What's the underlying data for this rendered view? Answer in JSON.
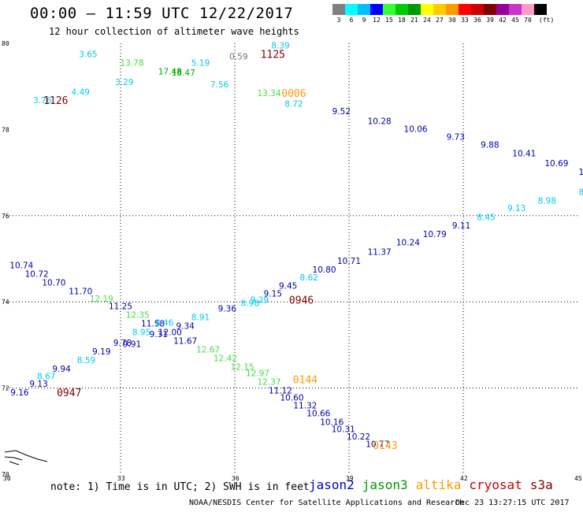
{
  "header": {
    "title": "00:00 — 11:59 UTC 12/22/2017",
    "subtitle": "12 hour collection of altimeter wave heights"
  },
  "legend": {
    "unit": "(ft)",
    "bins": [
      {
        "label": "3",
        "color": "#808080"
      },
      {
        "label": "6",
        "color": "#00ffff"
      },
      {
        "label": "9",
        "color": "#00bfff"
      },
      {
        "label": "12",
        "color": "#0000ff"
      },
      {
        "label": "15",
        "color": "#33ff33"
      },
      {
        "label": "18",
        "color": "#00cc00"
      },
      {
        "label": "21",
        "color": "#009900"
      },
      {
        "label": "24",
        "color": "#ffff00"
      },
      {
        "label": "27",
        "color": "#ffcc00"
      },
      {
        "label": "30",
        "color": "#ff9900"
      },
      {
        "label": "33",
        "color": "#ff0000"
      },
      {
        "label": "36",
        "color": "#cc0000"
      },
      {
        "label": "39",
        "color": "#800000"
      },
      {
        "label": "42",
        "color": "#990099"
      },
      {
        "label": "45",
        "color": "#cc33cc"
      },
      {
        "label": "70",
        "color": "#ff99cc"
      },
      {
        "label": "",
        "color": "#000000"
      }
    ]
  },
  "footer": {
    "note": "note: 1) Time is in UTC; 2) SWH is in feet",
    "credit": "NOAA/NESDIS Center for Satellite Applications and Research",
    "timestamp": "Dec 23 13:27:15 UTC 2017",
    "satellites": [
      {
        "name": "jason2",
        "color": "#0000cc"
      },
      {
        "name": "jason3",
        "color": "#009900"
      },
      {
        "name": "altika",
        "color": "#ff9900"
      },
      {
        "name": "cryosat",
        "color": "#cc0000"
      },
      {
        "name": "s3a",
        "color": "#800000"
      }
    ]
  },
  "colors": {
    "c": "#00ccee",
    "b": "#0000aa",
    "g": "#44dd44",
    "d": "#00aa00",
    "o": "#ff9900",
    "r": "#800000",
    "k": "#707070"
  },
  "chart_data": {
    "type": "scatter",
    "xlabel": "",
    "ylabel": "",
    "xlim": [
      30,
      45
    ],
    "ylim": [
      70,
      80
    ],
    "x_ticks": [
      "30",
      "33",
      "36",
      "39",
      "42",
      "45"
    ],
    "y_ticks": [
      "70",
      "72",
      "74",
      "76",
      "78",
      "80"
    ],
    "x_tick_values": [
      30,
      33,
      36,
      39,
      42,
      45
    ],
    "y_tick_values": [
      70,
      72,
      74,
      76,
      78,
      80
    ],
    "grid_x": [
      33,
      36,
      39,
      42
    ],
    "grid_y": [
      72,
      74,
      76
    ],
    "points": [
      {
        "x": 32.15,
        "y": 79.75,
        "t": "3.65",
        "c": "c"
      },
      {
        "x": 33.3,
        "y": 79.55,
        "t": "13.78",
        "c": "g"
      },
      {
        "x": 35.1,
        "y": 79.55,
        "t": "5.19",
        "c": "c"
      },
      {
        "x": 36.1,
        "y": 79.7,
        "t": "0.59",
        "c": "k"
      },
      {
        "x": 37.2,
        "y": 79.95,
        "t": "8.39",
        "c": "c"
      },
      {
        "x": 34.3,
        "y": 79.35,
        "t": "17.48",
        "c": "d"
      },
      {
        "x": 34.65,
        "y": 79.32,
        "t": "18.47",
        "c": "d"
      },
      {
        "x": 33.1,
        "y": 79.1,
        "t": "3.29",
        "c": "c"
      },
      {
        "x": 35.6,
        "y": 79.05,
        "t": "7.56",
        "c": "c"
      },
      {
        "x": 31.95,
        "y": 78.88,
        "t": "4.49",
        "c": "c"
      },
      {
        "x": 36.9,
        "y": 78.85,
        "t": "13.34",
        "c": "g"
      },
      {
        "x": 30.95,
        "y": 78.68,
        "t": "3.76",
        "c": "c"
      },
      {
        "x": 37.55,
        "y": 78.6,
        "t": "8.72",
        "c": "c"
      },
      {
        "x": 38.8,
        "y": 78.43,
        "t": "9.52",
        "c": "b"
      },
      {
        "x": 39.8,
        "y": 78.2,
        "t": "10.28",
        "c": "b"
      },
      {
        "x": 40.75,
        "y": 78.02,
        "t": "10.06",
        "c": "b"
      },
      {
        "x": 41.8,
        "y": 77.83,
        "t": "9.73",
        "c": "b"
      },
      {
        "x": 42.7,
        "y": 77.65,
        "t": "9.88",
        "c": "b"
      },
      {
        "x": 43.6,
        "y": 77.45,
        "t": "10.41",
        "c": "b"
      },
      {
        "x": 44.45,
        "y": 77.22,
        "t": "10.69",
        "c": "b"
      },
      {
        "x": 45.1,
        "y": 77.02,
        "t": "1",
        "c": "b"
      },
      {
        "x": 45.1,
        "y": 76.55,
        "t": "8",
        "c": "c"
      },
      {
        "x": 44.2,
        "y": 76.35,
        "t": "8.98",
        "c": "c"
      },
      {
        "x": 43.4,
        "y": 76.18,
        "t": "9.13",
        "c": "c"
      },
      {
        "x": 42.6,
        "y": 75.97,
        "t": "8.45",
        "c": "c"
      },
      {
        "x": 41.95,
        "y": 75.78,
        "t": "9.11",
        "c": "b"
      },
      {
        "x": 41.25,
        "y": 75.58,
        "t": "10.79",
        "c": "b"
      },
      {
        "x": 40.55,
        "y": 75.38,
        "t": "10.24",
        "c": "b"
      },
      {
        "x": 39.8,
        "y": 75.16,
        "t": "11.37",
        "c": "b"
      },
      {
        "x": 39.0,
        "y": 74.95,
        "t": "10.71",
        "c": "b"
      },
      {
        "x": 38.35,
        "y": 74.75,
        "t": "10.80",
        "c": "b"
      },
      {
        "x": 37.95,
        "y": 74.57,
        "t": "8.62",
        "c": "c"
      },
      {
        "x": 37.4,
        "y": 74.38,
        "t": "9.45",
        "c": "b"
      },
      {
        "x": 37.0,
        "y": 74.2,
        "t": "9.15",
        "c": "b"
      },
      {
        "x": 36.65,
        "y": 74.05,
        "t": "9.29",
        "c": "c"
      },
      {
        "x": 36.4,
        "y": 73.98,
        "t": "8.98",
        "c": "c"
      },
      {
        "x": 35.8,
        "y": 73.85,
        "t": "9.36",
        "c": "b"
      },
      {
        "x": 35.1,
        "y": 73.65,
        "t": "8.91",
        "c": "c"
      },
      {
        "x": 34.7,
        "y": 73.45,
        "t": "9.34",
        "c": "b"
      },
      {
        "x": 34.0,
        "y": 73.25,
        "t": "9.31",
        "c": "b"
      },
      {
        "x": 33.3,
        "y": 73.03,
        "t": "9.91",
        "c": "b"
      },
      {
        "x": 30.4,
        "y": 74.85,
        "t": "10.74",
        "c": "b"
      },
      {
        "x": 30.8,
        "y": 74.65,
        "t": "10.72",
        "c": "b"
      },
      {
        "x": 31.25,
        "y": 74.45,
        "t": "10.70",
        "c": "b"
      },
      {
        "x": 31.95,
        "y": 74.25,
        "t": "11.70",
        "c": "b"
      },
      {
        "x": 32.5,
        "y": 74.08,
        "t": "12.19",
        "c": "g"
      },
      {
        "x": 33.0,
        "y": 73.9,
        "t": "11.25",
        "c": "b"
      },
      {
        "x": 33.45,
        "y": 73.7,
        "t": "12.35",
        "c": "g"
      },
      {
        "x": 33.85,
        "y": 73.5,
        "t": "11.58",
        "c": "b"
      },
      {
        "x": 34.15,
        "y": 73.52,
        "t": "8.46",
        "c": "c"
      },
      {
        "x": 34.3,
        "y": 73.3,
        "t": "12.00",
        "c": "b"
      },
      {
        "x": 34.7,
        "y": 73.1,
        "t": "11.67",
        "c": "b"
      },
      {
        "x": 35.3,
        "y": 72.9,
        "t": "12.67",
        "c": "g"
      },
      {
        "x": 35.75,
        "y": 72.7,
        "t": "12.42",
        "c": "g"
      },
      {
        "x": 36.2,
        "y": 72.5,
        "t": "12.15",
        "c": "g"
      },
      {
        "x": 36.6,
        "y": 72.35,
        "t": "12.97",
        "c": "g"
      },
      {
        "x": 36.9,
        "y": 72.15,
        "t": "12.37",
        "c": "g"
      },
      {
        "x": 37.2,
        "y": 71.95,
        "t": "11.12",
        "c": "b"
      },
      {
        "x": 37.5,
        "y": 71.78,
        "t": "10.60",
        "c": "b"
      },
      {
        "x": 37.85,
        "y": 71.6,
        "t": "11.32",
        "c": "b"
      },
      {
        "x": 38.2,
        "y": 71.42,
        "t": "10.66",
        "c": "b"
      },
      {
        "x": 38.55,
        "y": 71.22,
        "t": "10.16",
        "c": "b"
      },
      {
        "x": 38.85,
        "y": 71.05,
        "t": "10.31",
        "c": "b"
      },
      {
        "x": 39.25,
        "y": 70.88,
        "t": "10.22",
        "c": "b"
      },
      {
        "x": 39.75,
        "y": 70.7,
        "t": "10.77",
        "c": "b"
      },
      {
        "x": 33.55,
        "y": 73.3,
        "t": "8.95",
        "c": "c"
      },
      {
        "x": 33.05,
        "y": 73.05,
        "t": "9.78",
        "c": "b"
      },
      {
        "x": 32.5,
        "y": 72.85,
        "t": "9.19",
        "c": "b"
      },
      {
        "x": 32.1,
        "y": 72.65,
        "t": "8.59",
        "c": "c"
      },
      {
        "x": 31.45,
        "y": 72.45,
        "t": "9.94",
        "c": "b"
      },
      {
        "x": 31.05,
        "y": 72.28,
        "t": "8.67",
        "c": "c"
      },
      {
        "x": 30.85,
        "y": 72.1,
        "t": "9.13",
        "c": "b"
      },
      {
        "x": 30.35,
        "y": 71.9,
        "t": "9.16",
        "c": "b"
      }
    ],
    "passes": [
      {
        "x": 37.0,
        "y": 79.75,
        "t": "1125",
        "c": "r"
      },
      {
        "x": 31.3,
        "y": 78.68,
        "t": "1126",
        "c": "r"
      },
      {
        "x": 37.55,
        "y": 78.85,
        "t": "0006",
        "c": "o"
      },
      {
        "x": 37.75,
        "y": 74.05,
        "t": "0946",
        "c": "r"
      },
      {
        "x": 37.85,
        "y": 72.2,
        "t": "0144",
        "c": "o"
      },
      {
        "x": 31.65,
        "y": 71.9,
        "t": "0947",
        "c": "r"
      },
      {
        "x": 39.95,
        "y": 70.68,
        "t": "0143",
        "c": "o"
      }
    ]
  }
}
